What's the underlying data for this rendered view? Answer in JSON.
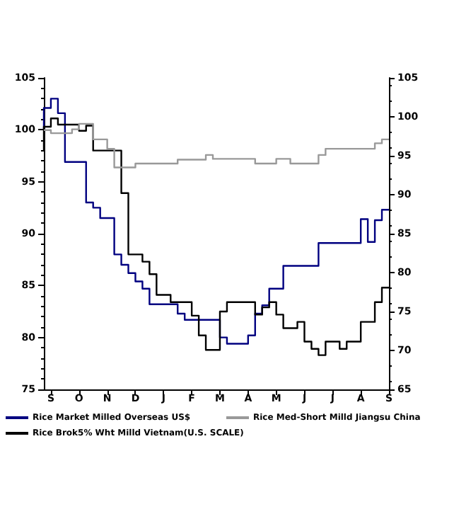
{
  "chart_data": {
    "type": "step",
    "categories": [
      null,
      "S",
      null,
      null,
      null,
      "O",
      null,
      null,
      null,
      "N",
      null,
      null,
      null,
      "D",
      null,
      null,
      null,
      "J",
      null,
      null,
      null,
      "F",
      null,
      null,
      null,
      "M",
      null,
      null,
      null,
      "A",
      null,
      null,
      null,
      "M",
      null,
      null,
      null,
      "J",
      null,
      null,
      null,
      "J",
      null,
      null,
      null,
      "A",
      null,
      null,
      null,
      "S"
    ],
    "ylim": [
      75,
      105
    ],
    "yticks": [
      75,
      80,
      85,
      90,
      95,
      100,
      105
    ],
    "y2lim": [
      65,
      105
    ],
    "y2ticks": [
      65,
      70,
      75,
      80,
      85,
      90,
      95,
      100,
      105
    ],
    "grid": false,
    "legend": "bottom",
    "marker": "none",
    "line_style": "solid",
    "series": [
      {
        "name": "Rice Market Milled Overseas US$",
        "color": "#000080",
        "values": [
          100,
          102.1,
          103,
          101.6,
          96.9,
          96.9,
          96.9,
          93,
          92.5,
          91.5,
          91.5,
          88,
          87,
          86.2,
          85.4,
          84.7,
          83.2,
          83.2,
          83.2,
          83.2,
          82.3,
          81.7,
          81.7,
          81.7,
          81.7,
          81.7,
          80,
          79.4,
          79.4,
          79.4,
          80.2,
          82.3,
          83.1,
          84.7,
          84.7,
          86.9,
          86.9,
          86.9,
          86.9,
          86.9,
          89.1,
          89.1,
          89.1,
          89.1,
          89.1,
          89.1,
          91.4,
          89.2,
          91.3,
          92.3
        ]
      },
      {
        "name": "Rice Brok5% Wht Milld Vietnam(U.S. SCALE)",
        "color": "#000000",
        "values": [
          98,
          100.3,
          101.1,
          100.5,
          100.5,
          100.5,
          99.9,
          100.4,
          98,
          98,
          98,
          98,
          93.9,
          88,
          88,
          87.3,
          86.1,
          84.1,
          84.1,
          83.4,
          83.4,
          83.4,
          82.1,
          80.2,
          78.8,
          78.8,
          82.5,
          83.4,
          83.4,
          83.4,
          83.4,
          82.2,
          82.9,
          83.4,
          82.2,
          80.9,
          80.9,
          81.5,
          79.6,
          78.9,
          78.3,
          79.6,
          79.6,
          78.9,
          79.6,
          79.6,
          81.5,
          81.5,
          83.4,
          84.8
        ]
      },
      {
        "name": "Rice Med-Short Milld Jiangsu China",
        "color": "#999999",
        "axis": "y2",
        "values": [
          98.3,
          98.3,
          97.9,
          97.9,
          97.9,
          98.4,
          99.1,
          99.1,
          97.1,
          97.1,
          95.9,
          93.5,
          93.5,
          93.5,
          94,
          94,
          94,
          94,
          94,
          94,
          94.5,
          94.5,
          94.5,
          94.5,
          95.1,
          94.6,
          94.6,
          94.6,
          94.6,
          94.6,
          94.6,
          94,
          94,
          94,
          94.6,
          94.6,
          94,
          94,
          94,
          94,
          95.1,
          95.9,
          95.9,
          95.9,
          95.9,
          95.9,
          95.9,
          95.9,
          96.6,
          97.1
        ]
      }
    ]
  }
}
